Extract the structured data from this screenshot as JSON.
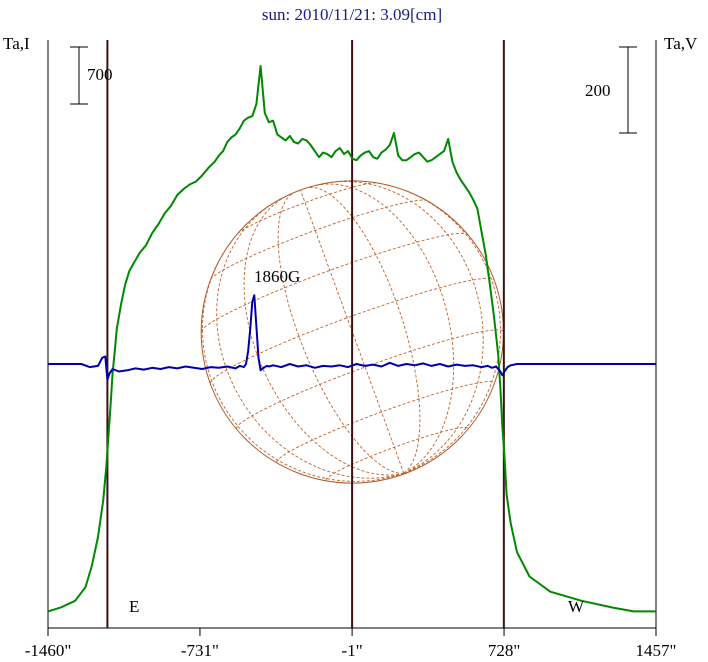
{
  "chart_data": {
    "type": "line",
    "title": "sun: 2010/11/21: 3.09[cm]",
    "ylabel_left": "Ta,I",
    "ylabel_right": "Ta,V",
    "scale_left": "700",
    "scale_right": "200",
    "x_ticks": [
      "-1460\"",
      "-731\"",
      "-1\"",
      "728\"",
      "1457\""
    ],
    "x_tick_values": [
      -1460,
      -731,
      -1,
      728,
      1457
    ],
    "xlim": [
      -1460,
      1457
    ],
    "limb_labels": {
      "east": "E",
      "west": "W"
    },
    "vertical_lines": [
      -1175,
      -1,
      727
    ],
    "source_label": "1860G",
    "solar_radius_arcsec": 725,
    "grid": false,
    "series": [
      {
        "color": "#008800",
        "x": [
          -1460,
          -1400,
          -1330,
          -1280,
          -1250,
          -1220,
          -1195,
          -1180,
          -1170,
          -1160,
          -1150,
          -1140,
          -1130,
          -1110,
          -1090,
          -1070,
          -1050,
          -1020,
          -990,
          -960,
          -930,
          -900,
          -870,
          -840,
          -810,
          -780,
          -750,
          -720,
          -690,
          -660,
          -640,
          -620,
          -600,
          -580,
          -560,
          -540,
          -520,
          -500,
          -480,
          -460,
          -440,
          -420,
          -400,
          -380,
          -360,
          -340,
          -320,
          -300,
          -280,
          -260,
          -240,
          -220,
          -200,
          -180,
          -160,
          -140,
          -120,
          -100,
          -80,
          -60,
          -40,
          -20,
          0,
          20,
          40,
          60,
          80,
          100,
          120,
          140,
          160,
          180,
          200,
          220,
          240,
          260,
          280,
          300,
          320,
          340,
          360,
          380,
          400,
          420,
          440,
          460,
          480,
          500,
          520,
          540,
          560,
          580,
          600,
          620,
          640,
          660,
          680,
          700,
          710,
          720,
          730,
          740,
          760,
          790,
          850,
          950,
          1100,
          1250,
          1350,
          1457
        ],
        "y": [
          30,
          55,
          100,
          190,
          330,
          520,
          760,
          990,
          1180,
          1380,
          1600,
          1740,
          1890,
          2050,
          2180,
          2270,
          2320,
          2390,
          2440,
          2520,
          2580,
          2650,
          2700,
          2770,
          2810,
          2840,
          2860,
          2900,
          2950,
          2990,
          3030,
          3060,
          3120,
          3150,
          3170,
          3210,
          3260,
          3280,
          3290,
          3370,
          3620,
          3310,
          3250,
          3260,
          3170,
          3150,
          3130,
          3160,
          3120,
          3110,
          3140,
          3130,
          3100,
          3060,
          3020,
          3050,
          3040,
          3020,
          3060,
          3080,
          3040,
          3060,
          3010,
          3000,
          3030,
          3050,
          3060,
          3020,
          3010,
          3050,
          3070,
          3100,
          3180,
          3030,
          3000,
          3000,
          3020,
          3040,
          3050,
          3020,
          2990,
          3000,
          3020,
          3040,
          3060,
          3140,
          2990,
          2920,
          2870,
          2830,
          2790,
          2740,
          2680,
          2530,
          2380,
          2180,
          1970,
          1720,
          1510,
          1240,
          1050,
          800,
          610,
          420,
          260,
          160,
          100,
          55,
          30,
          30
        ]
      },
      {
        "color": "#0000aa",
        "x": [
          -1460,
          -1300,
          -1260,
          -1220,
          -1200,
          -1185,
          -1175,
          -1165,
          -1150,
          -1120,
          -1080,
          -1040,
          -1000,
          -960,
          -920,
          -880,
          -840,
          -800,
          -760,
          -720,
          -680,
          -640,
          -600,
          -560,
          -540,
          -520,
          -510,
          -500,
          -490,
          -480,
          -470,
          -460,
          -450,
          -440,
          -430,
          -420,
          -410,
          -400,
          -380,
          -340,
          -300,
          -260,
          -220,
          -180,
          -140,
          -100,
          -60,
          -20,
          20,
          60,
          100,
          140,
          180,
          220,
          260,
          300,
          340,
          380,
          420,
          460,
          500,
          540,
          580,
          620,
          650,
          670,
          690,
          700,
          710,
          720,
          730,
          745,
          760,
          790,
          850,
          1000,
          1200,
          1457
        ],
        "y": [
          0,
          0,
          -5,
          -3,
          10,
          12,
          -25,
          -15,
          -8,
          -12,
          -10,
          -7,
          -9,
          -6,
          -8,
          -5,
          -7,
          -4,
          -6,
          -8,
          -5,
          -6,
          -4,
          -7,
          -3,
          -5,
          0,
          20,
          55,
          100,
          110,
          60,
          10,
          -10,
          -7,
          -5,
          -3,
          -4,
          -2,
          -5,
          0,
          -4,
          -2,
          -6,
          -3,
          -4,
          -2,
          -5,
          0,
          -3,
          -1,
          -4,
          2,
          -3,
          0,
          -2,
          1,
          -3,
          0,
          -4,
          -1,
          -3,
          -2,
          -5,
          -3,
          -6,
          -4,
          -8,
          -12,
          -18,
          -12,
          -5,
          -2,
          0,
          0,
          0,
          0,
          0
        ]
      }
    ]
  }
}
